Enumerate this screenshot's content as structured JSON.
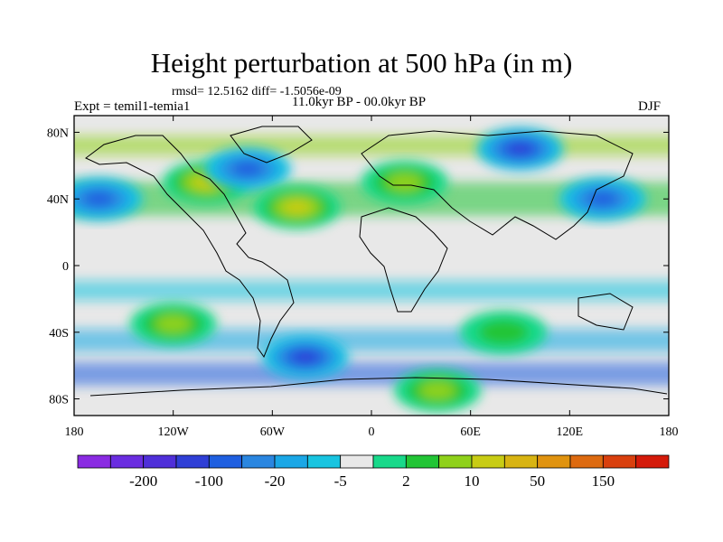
{
  "header": {
    "title": "Height perturbation at 500 hPa (in m)",
    "stats": "rmsd= 12.5162 diff= -1.5056e-09",
    "experiment": "Expt = temil1-temia1",
    "period": "11.0kyr BP - 00.0kyr BP",
    "season": "DJF"
  },
  "chart_data": {
    "type": "heatmap",
    "title": "Height perturbation at 500 hPa (in m)",
    "subtitle": "11.0kyr BP - 00.0kyr BP",
    "xlabel": "",
    "ylabel": "",
    "xlim": [
      -180,
      180
    ],
    "ylim": [
      -90,
      90
    ],
    "x_ticks": [
      {
        "value": -180,
        "label": "180"
      },
      {
        "value": -120,
        "label": "120W"
      },
      {
        "value": -60,
        "label": "60W"
      },
      {
        "value": 0,
        "label": "0"
      },
      {
        "value": 60,
        "label": "60E"
      },
      {
        "value": 120,
        "label": "120E"
      },
      {
        "value": 180,
        "label": "180"
      }
    ],
    "y_ticks": [
      {
        "value": 80,
        "label": "80N"
      },
      {
        "value": 40,
        "label": "40N"
      },
      {
        "value": 0,
        "label": "0"
      },
      {
        "value": -40,
        "label": "40S"
      },
      {
        "value": -80,
        "label": "80S"
      }
    ],
    "colorbar": {
      "colors": [
        "#8a2be2",
        "#6a2de0",
        "#4f2fd9",
        "#2f3fd6",
        "#1f5fe0",
        "#2a86e0",
        "#1aa7e6",
        "#18c4e0",
        "#e8e8e8",
        "#18d98a",
        "#22c535",
        "#8fd11a",
        "#c8cc14",
        "#d8b412",
        "#e0930f",
        "#dd6a10",
        "#d9400e",
        "#d41a0a"
      ],
      "labels": [
        "-200",
        "-100",
        "-20",
        "-5",
        "2",
        "10",
        "50",
        "150"
      ]
    },
    "regions": [
      {
        "name": "north-pacific-low",
        "lon": -165,
        "lat": 40,
        "level": -3
      },
      {
        "name": "north-america-high",
        "lon": -100,
        "lat": 50,
        "level": 3
      },
      {
        "name": "hudson-bay-low",
        "lon": -75,
        "lat": 58,
        "level": -3
      },
      {
        "name": "north-atlantic-high",
        "lon": -45,
        "lat": 35,
        "level": 3
      },
      {
        "name": "europe-high",
        "lon": 20,
        "lat": 50,
        "level": 2
      },
      {
        "name": "siberia-low",
        "lon": 90,
        "lat": 70,
        "level": -4
      },
      {
        "name": "east-asia-low",
        "lon": 140,
        "lat": 40,
        "level": -3
      },
      {
        "name": "south-pacific-high",
        "lon": -120,
        "lat": -35,
        "level": 2
      },
      {
        "name": "south-atlantic-low",
        "lon": -40,
        "lat": -55,
        "level": -4
      },
      {
        "name": "indian-ocean-high",
        "lon": 80,
        "lat": -40,
        "level": 1
      },
      {
        "name": "antarctic-high",
        "lon": 40,
        "lat": -75,
        "level": 2
      }
    ]
  }
}
